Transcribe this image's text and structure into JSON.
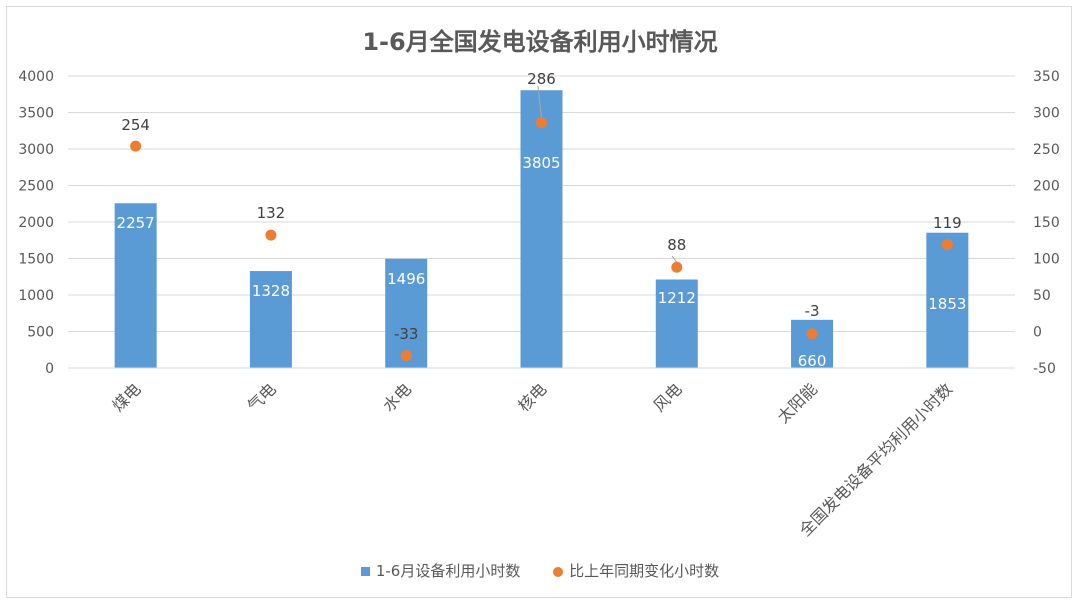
{
  "chart_data": {
    "type": "bar+scatter",
    "title": "1-6月全国发电设备利用小时情况",
    "categories": [
      "煤电",
      "气电",
      "水电",
      "核电",
      "风电",
      "太阳能",
      "全国发电设备平均利用小时数"
    ],
    "series": [
      {
        "name": "1-6月设备利用小时数",
        "type": "bar",
        "axis": "left",
        "color": "#5b9bd5",
        "values": [
          2257,
          1328,
          1496,
          3805,
          1212,
          660,
          1853
        ]
      },
      {
        "name": "比上年同期变化小时数",
        "type": "scatter",
        "axis": "right",
        "color": "#ed7d31",
        "values": [
          254,
          132,
          -33,
          286,
          88,
          -3,
          119
        ]
      }
    ],
    "y_left": {
      "min": 0,
      "max": 4000,
      "ticks": [
        0,
        500,
        1000,
        1500,
        2000,
        2500,
        3000,
        3500,
        4000
      ]
    },
    "y_right": {
      "min": -50,
      "max": 350,
      "ticks": [
        -50,
        0,
        50,
        100,
        150,
        200,
        250,
        300,
        350
      ]
    },
    "grid": true,
    "legend_position": "bottom"
  }
}
